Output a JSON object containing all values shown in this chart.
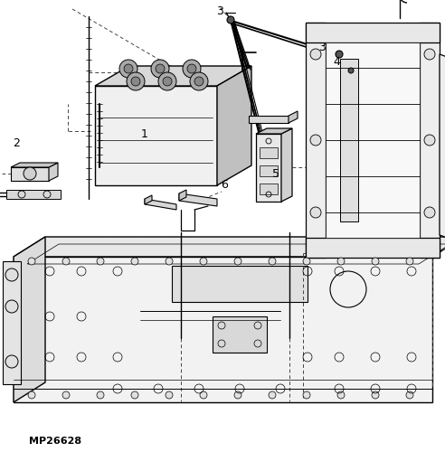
{
  "background_color": "#ffffff",
  "line_color": "#000000",
  "watermark": "MP26628",
  "figsize": [
    4.92,
    5.0
  ],
  "dpi": 100,
  "gray_fill": "#cccccc",
  "light_fill": "#e8e8e8",
  "mid_fill": "#bbbbbb"
}
